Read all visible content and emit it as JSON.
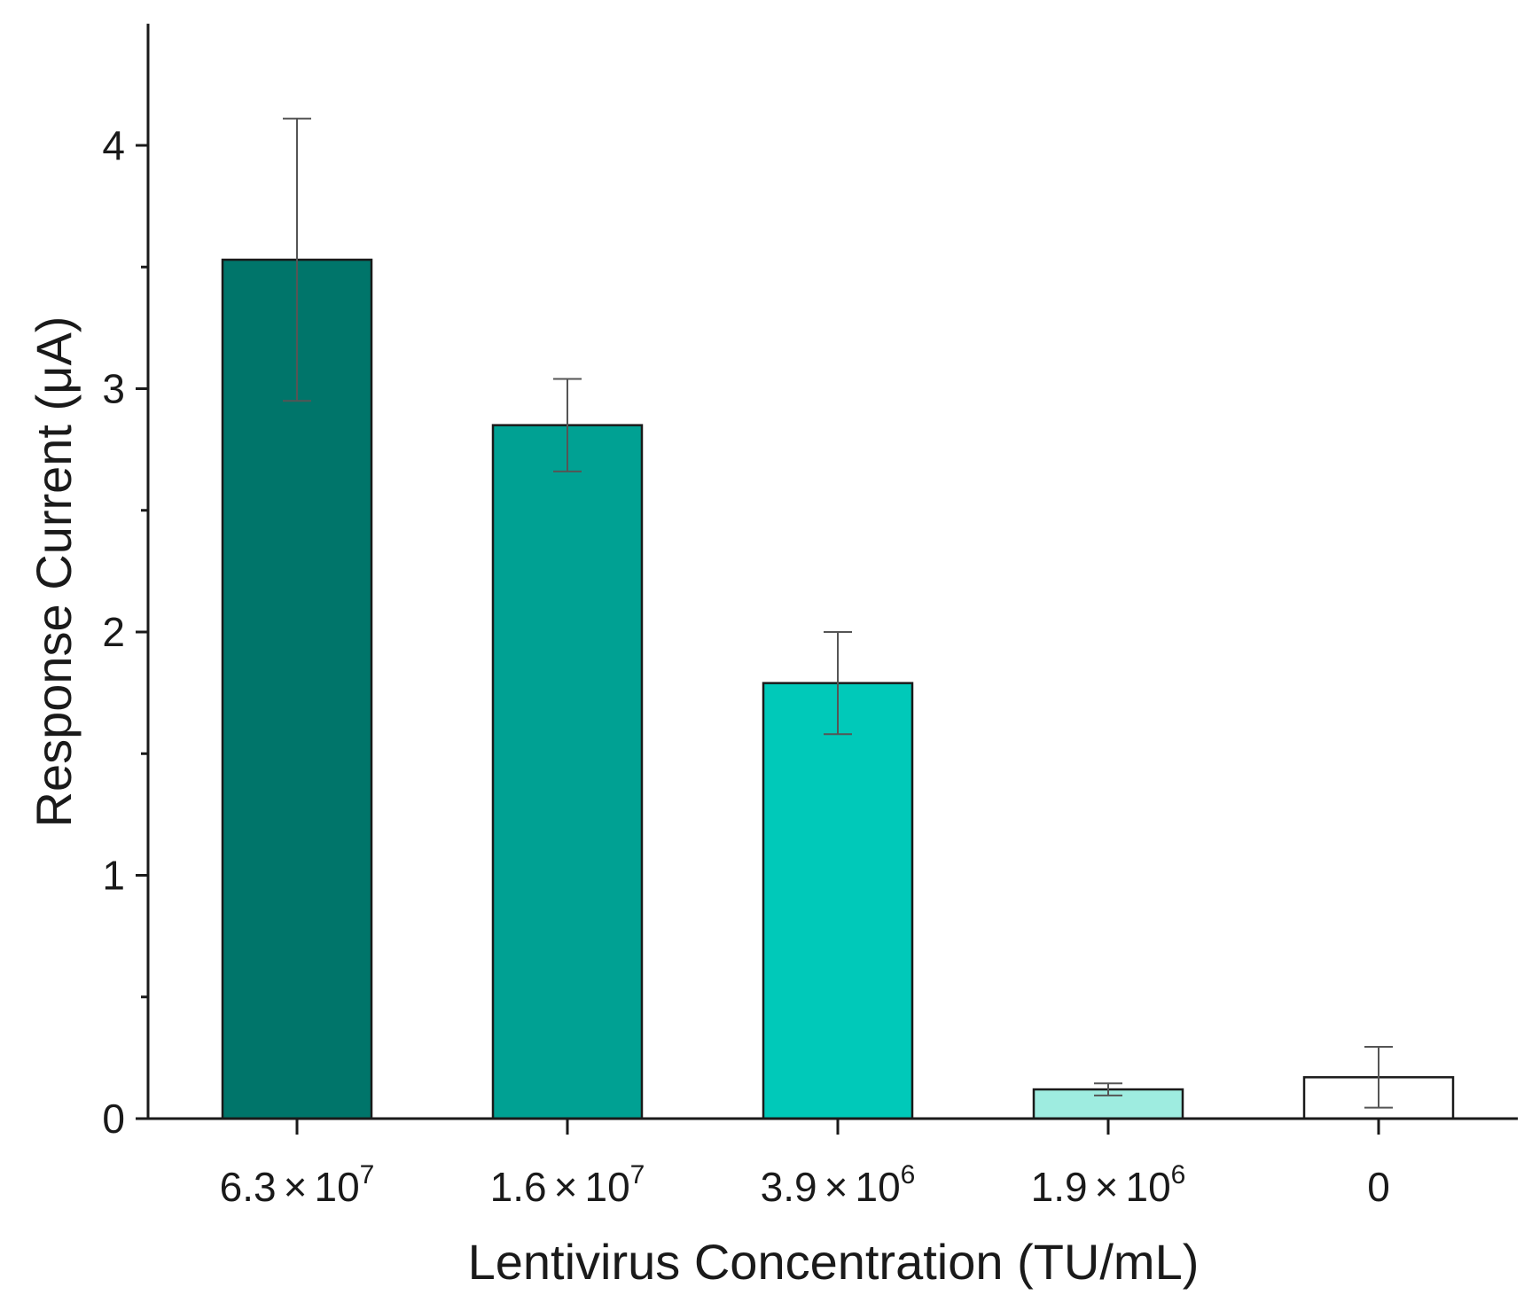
{
  "chart_data": {
    "type": "bar",
    "title": "",
    "xlabel": "Lentivirus Concentration (TU/mL)",
    "ylabel": "Response Current (μA)",
    "ylim": [
      0,
      4.5
    ],
    "y_major_ticks": [
      0,
      1,
      2,
      3,
      4
    ],
    "y_minor_ticks": [
      0.5,
      1.5,
      2.5,
      3.5
    ],
    "categories": [
      {
        "base": "6.3",
        "times": "×",
        "mant": "10",
        "exp": "7"
      },
      {
        "base": "1.6",
        "times": "×",
        "mant": "10",
        "exp": "7"
      },
      {
        "base": "3.9",
        "times": "×",
        "mant": "10",
        "exp": "6"
      },
      {
        "base": "1.9",
        "times": "×",
        "mant": "10",
        "exp": "6"
      },
      {
        "base": "0",
        "times": "",
        "mant": "",
        "exp": ""
      }
    ],
    "values": [
      3.53,
      2.85,
      1.79,
      0.12,
      0.17
    ],
    "errors": [
      0.58,
      0.19,
      0.21,
      0.025,
      0.125
    ],
    "colors": [
      "#00756a",
      "#00a193",
      "#00c9b9",
      "#9eece0",
      "#ffffff"
    ]
  }
}
